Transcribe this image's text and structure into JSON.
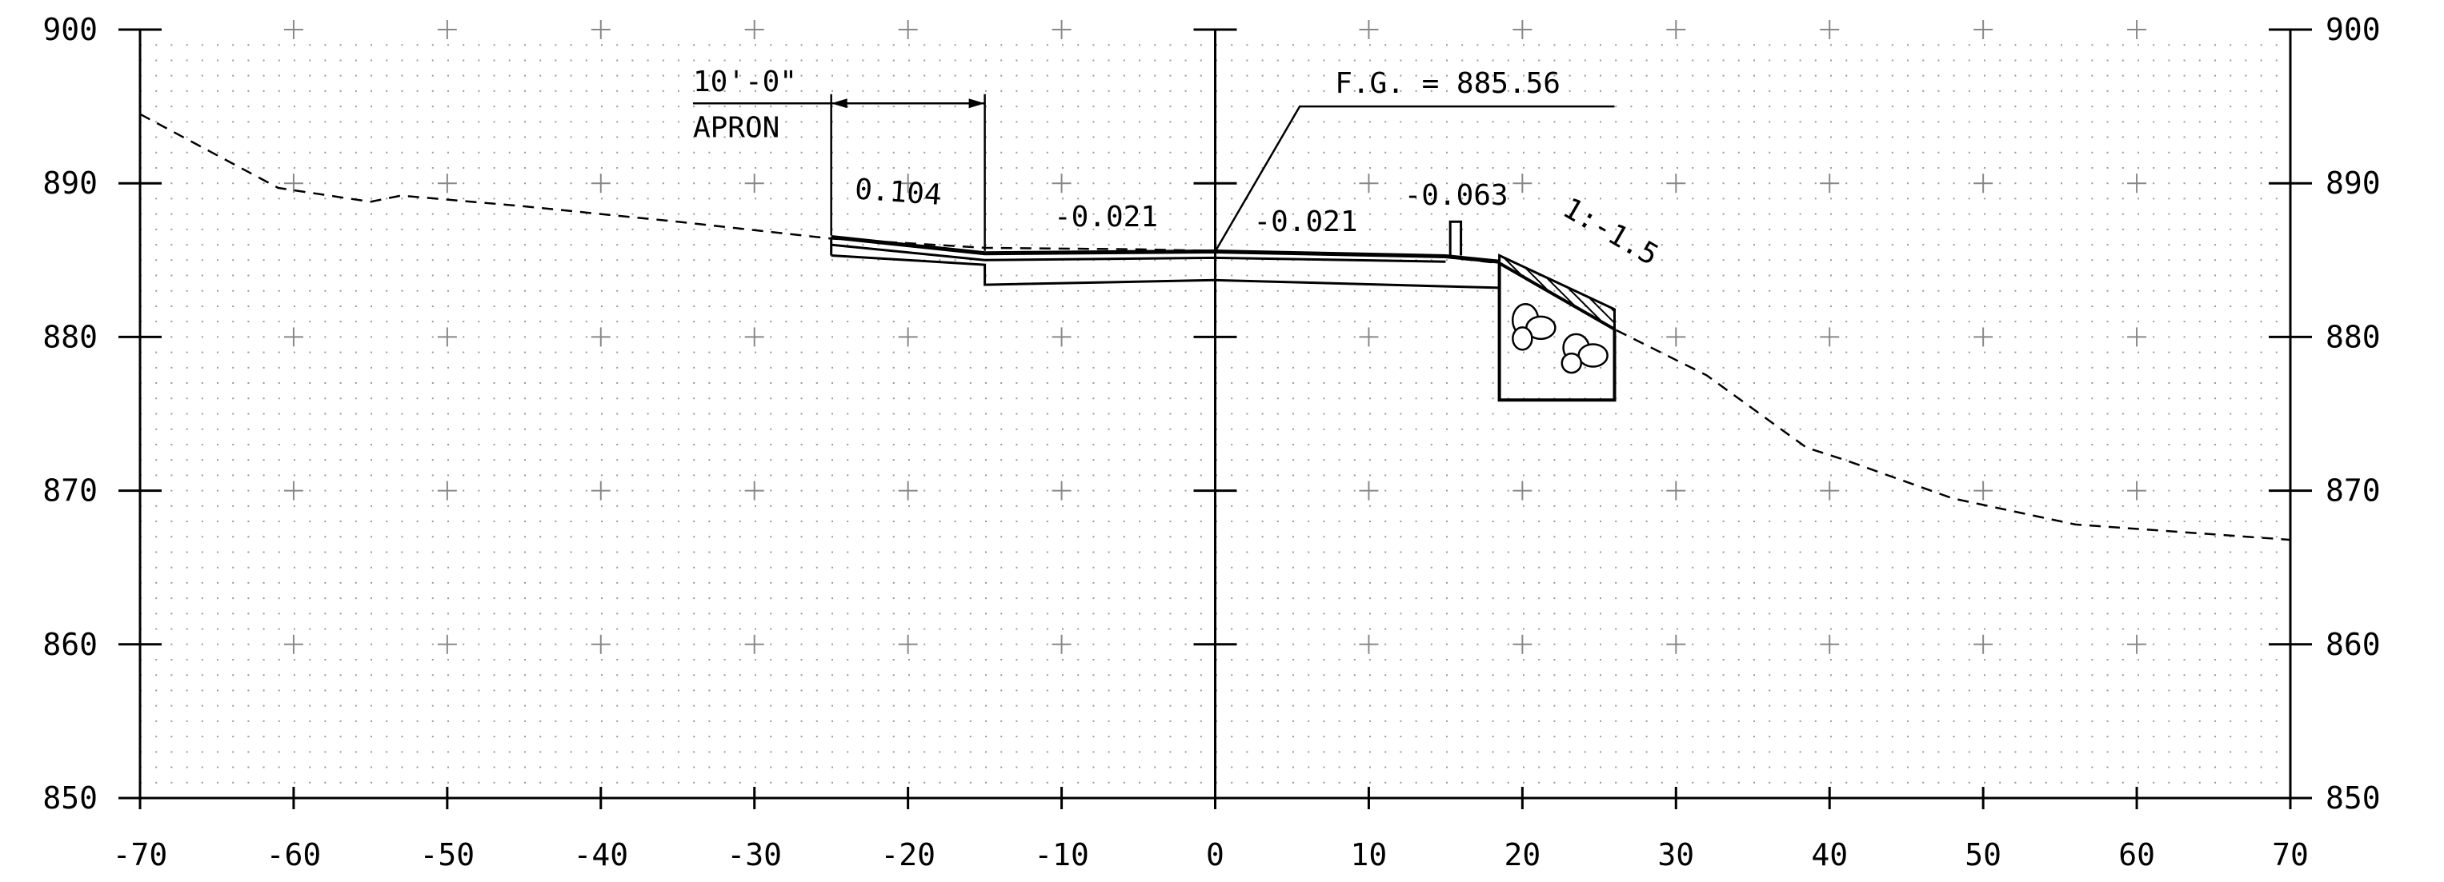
{
  "chart_data": {
    "type": "cross-section",
    "xlim": [
      -70,
      70
    ],
    "ylim": [
      850,
      900
    ],
    "x_ticks": [
      -70,
      -60,
      -50,
      -40,
      -30,
      -20,
      -10,
      0,
      10,
      20,
      30,
      40,
      50,
      60,
      70
    ],
    "x_tick_labels": [
      "-70",
      "-60",
      "-50",
      "-40",
      "-30",
      "-20",
      "-10",
      "0",
      "10",
      "20",
      "30",
      "40",
      "50",
      "60",
      "70"
    ],
    "y_ticks": [
      850,
      860,
      870,
      880,
      890,
      900
    ],
    "y_tick_labels": [
      "850",
      "860",
      "870",
      "880",
      "890",
      "900"
    ],
    "grid": "dotted with + markers every 10 ft",
    "existing_ground": {
      "style": "dashed",
      "points": [
        [
          -70,
          894.5
        ],
        [
          -61,
          889.7
        ],
        [
          -55,
          888.8
        ],
        [
          -53,
          889.2
        ],
        [
          -45,
          888.5
        ],
        [
          -35,
          887.5
        ],
        [
          -25,
          886.4
        ],
        [
          -15,
          885.8
        ],
        [
          -5,
          885.7
        ],
        [
          0,
          885.6
        ],
        [
          10,
          885.4
        ],
        [
          15,
          885.2
        ],
        [
          18.5,
          884.8
        ],
        [
          26,
          880.5
        ],
        [
          32,
          877.5
        ],
        [
          38.5,
          872.8
        ],
        [
          41,
          872.0
        ],
        [
          48,
          869.5
        ],
        [
          56,
          867.8
        ],
        [
          70,
          866.8
        ]
      ]
    },
    "finished_grade_top": [
      [
        -25,
        886.5
      ],
      [
        -15,
        885.45
      ],
      [
        0,
        885.56
      ],
      [
        15,
        885.25
      ],
      [
        18.5,
        884.9
      ]
    ],
    "finished_grade_lower": [
      [
        -25,
        886.0
      ],
      [
        -15,
        885.0
      ],
      [
        0,
        885.15
      ],
      [
        15,
        884.9
      ]
    ],
    "subgrade": [
      [
        -25,
        885.3
      ],
      [
        -15,
        884.7
      ],
      [
        -15,
        883.4
      ],
      [
        0,
        883.7
      ],
      [
        18.5,
        883.2
      ]
    ],
    "riprap": {
      "outline": [
        [
          18.5,
          884.8
        ],
        [
          26,
          880.5
        ],
        [
          26,
          875.9
        ],
        [
          18.5,
          875.9
        ]
      ],
      "hatch_band": [
        [
          18.5,
          884.8
        ],
        [
          26,
          880.5
        ],
        [
          26,
          881.8
        ],
        [
          18.5,
          885.3
        ]
      ]
    },
    "curb": [
      [
        15.3,
        885.2
      ],
      [
        15.3,
        887.5
      ],
      [
        16,
        887.5
      ],
      [
        16,
        885.3
      ]
    ],
    "apron_dimension": {
      "x_from": -25,
      "x_to": -15,
      "y": 895.2
    },
    "fg_leader": {
      "from": [
        0,
        885.56
      ],
      "elbow": [
        5.5,
        895.0
      ],
      "to": [
        26,
        895.0
      ]
    },
    "annotations": [
      {
        "text": "10'-0\"",
        "x": -34,
        "y": 896.0
      },
      {
        "text": "APRON",
        "x": -34,
        "y": 893.0
      },
      {
        "text": "0.104",
        "x": -23.5,
        "y": 889.0,
        "rotate": 4
      },
      {
        "text": "-0.021",
        "x": -10.5,
        "y": 887.2
      },
      {
        "text": "-0.021",
        "x": 2.5,
        "y": 886.9
      },
      {
        "text": "-0.063",
        "x": 12.3,
        "y": 888.6
      },
      {
        "text": "F.G. = 885.56",
        "x": 7.8,
        "y": 895.9
      },
      {
        "text": "1:-1.5",
        "x": 22.5,
        "y": 888.0,
        "rotate": 30
      }
    ]
  }
}
